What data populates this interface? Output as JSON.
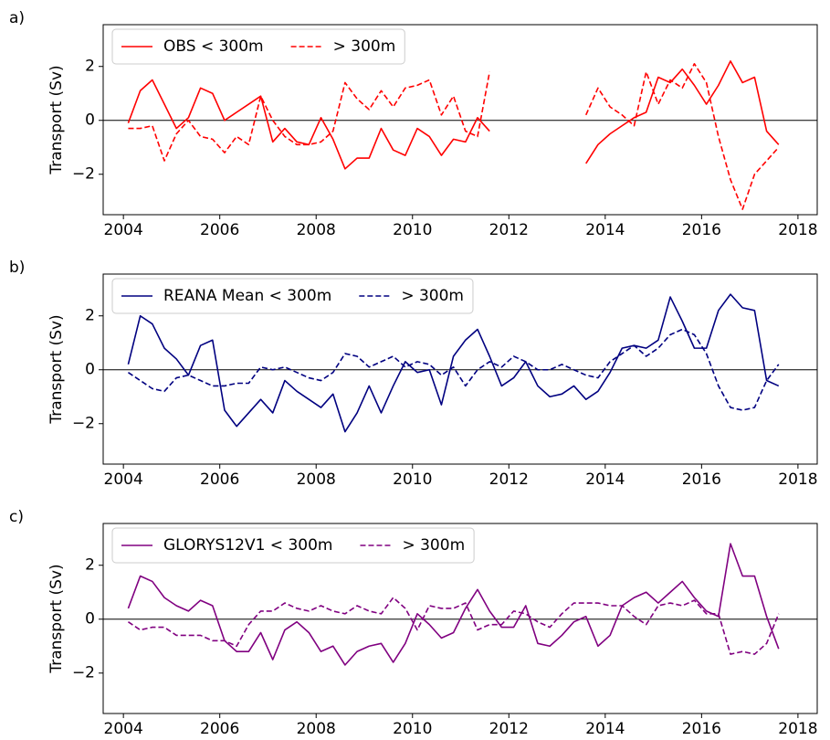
{
  "chart_data": [
    {
      "type": "line",
      "label": "a)",
      "ylabel": "Transport (Sv)",
      "legend": "upper left",
      "hline": 0,
      "xlim": [
        2003.58,
        2018.4
      ],
      "xticks": [
        2004,
        2006,
        2008,
        2010,
        2012,
        2014,
        2016,
        2018
      ],
      "ylim": [
        -3.5,
        3.55
      ],
      "yticks": [
        {
          "value": -2,
          "label": "−2"
        },
        0,
        2
      ],
      "x": [
        2004.1,
        2004.35,
        2004.6,
        2004.85,
        2005.1,
        2005.35,
        2005.6,
        2005.85,
        2006.1,
        2006.35,
        2006.6,
        2006.85,
        2007.1,
        2007.35,
        2007.6,
        2007.85,
        2008.1,
        2008.35,
        2008.6,
        2008.85,
        2009.1,
        2009.35,
        2009.6,
        2009.85,
        2010.1,
        2010.35,
        2010.6,
        2010.85,
        2011.1,
        2011.35,
        2011.6,
        2011.85,
        2012.1,
        2012.35,
        2012.6,
        2012.85,
        2013.1,
        2013.35,
        2013.6,
        2013.85,
        2014.1,
        2014.35,
        2014.6,
        2014.85,
        2015.1,
        2015.35,
        2015.6,
        2015.85,
        2016.1,
        2016.35,
        2016.6,
        2016.85,
        2017.1,
        2017.35,
        2017.6
      ],
      "series": [
        {
          "name": "OBS < 300m",
          "color": "#ff0000",
          "linestyle": "solid",
          "values": [
            -0.1,
            1.1,
            1.5,
            0.6,
            -0.3,
            0.1,
            1.2,
            1.0,
            0.0,
            0.3,
            0.6,
            0.9,
            -0.8,
            -0.3,
            -0.8,
            -0.9,
            0.1,
            -0.7,
            -1.8,
            -1.4,
            -1.4,
            -0.3,
            -1.1,
            -1.3,
            -0.3,
            -0.6,
            -1.3,
            -0.7,
            -0.8,
            0.1,
            -0.4,
            null,
            null,
            null,
            null,
            null,
            null,
            null,
            -1.6,
            -0.9,
            -0.5,
            -0.2,
            0.1,
            0.3,
            1.6,
            1.4,
            1.9,
            1.3,
            0.6,
            1.3,
            2.2,
            1.4,
            1.6,
            -0.4,
            -0.9
          ]
        },
        {
          "name": "> 300m",
          "color": "#ff0000",
          "linestyle": "dashed",
          "values": [
            -0.3,
            -0.3,
            -0.2,
            -1.5,
            -0.5,
            0.0,
            -0.6,
            -0.7,
            -1.2,
            -0.6,
            -0.9,
            0.9,
            0.0,
            -0.6,
            -0.9,
            -0.9,
            -0.8,
            -0.4,
            1.4,
            0.8,
            0.4,
            1.1,
            0.5,
            1.2,
            1.3,
            1.5,
            0.2,
            0.9,
            -0.4,
            -0.6,
            1.8,
            null,
            null,
            null,
            null,
            null,
            null,
            null,
            0.2,
            1.2,
            0.5,
            0.2,
            -0.2,
            1.8,
            0.6,
            1.5,
            1.2,
            2.1,
            1.4,
            -0.6,
            -2.2,
            -3.3,
            -2.0,
            -1.5,
            -1.0
          ]
        }
      ]
    },
    {
      "type": "line",
      "label": "b)",
      "ylabel": "Transport (Sv)",
      "legend": "upper left",
      "hline": 0,
      "xlim": [
        2003.58,
        2018.4
      ],
      "xticks": [
        2004,
        2006,
        2008,
        2010,
        2012,
        2014,
        2016,
        2018
      ],
      "ylim": [
        -3.5,
        3.55
      ],
      "yticks": [
        {
          "value": -2,
          "label": "−2"
        },
        0,
        2
      ],
      "x": [
        2004.1,
        2004.35,
        2004.6,
        2004.85,
        2005.1,
        2005.35,
        2005.6,
        2005.85,
        2006.1,
        2006.35,
        2006.6,
        2006.85,
        2007.1,
        2007.35,
        2007.6,
        2007.85,
        2008.1,
        2008.35,
        2008.6,
        2008.85,
        2009.1,
        2009.35,
        2009.6,
        2009.85,
        2010.1,
        2010.35,
        2010.6,
        2010.85,
        2011.1,
        2011.35,
        2011.6,
        2011.85,
        2012.1,
        2012.35,
        2012.6,
        2012.85,
        2013.1,
        2013.35,
        2013.6,
        2013.85,
        2014.1,
        2014.35,
        2014.6,
        2014.85,
        2015.1,
        2015.35,
        2015.6,
        2015.85,
        2016.1,
        2016.35,
        2016.6,
        2016.85,
        2017.1,
        2017.35,
        2017.6
      ],
      "series": [
        {
          "name": "REANA Mean < 300m",
          "color": "#000080",
          "linestyle": "solid",
          "values": [
            0.2,
            2.0,
            1.7,
            0.8,
            0.4,
            -0.2,
            0.9,
            1.1,
            -1.5,
            -2.1,
            -1.6,
            -1.1,
            -1.6,
            -0.4,
            -0.8,
            -1.1,
            -1.4,
            -0.9,
            -2.3,
            -1.6,
            -0.6,
            -1.6,
            -0.6,
            0.3,
            -0.1,
            0.0,
            -1.3,
            0.5,
            1.1,
            1.5,
            0.5,
            -0.6,
            -0.3,
            0.3,
            -0.6,
            -1.0,
            -0.9,
            -0.6,
            -1.1,
            -0.8,
            -0.1,
            0.8,
            0.9,
            0.8,
            1.1,
            2.7,
            1.8,
            0.8,
            0.8,
            2.2,
            2.8,
            2.3,
            2.2,
            -0.4,
            -0.6
          ]
        },
        {
          "name": "> 300m",
          "color": "#000080",
          "linestyle": "dashed",
          "values": [
            -0.1,
            -0.4,
            -0.7,
            -0.8,
            -0.3,
            -0.2,
            -0.4,
            -0.6,
            -0.6,
            -0.5,
            -0.5,
            0.1,
            0.0,
            0.1,
            -0.1,
            -0.3,
            -0.4,
            -0.1,
            0.6,
            0.5,
            0.1,
            0.3,
            0.5,
            0.1,
            0.3,
            0.2,
            -0.2,
            0.1,
            -0.6,
            0.0,
            0.3,
            0.1,
            0.5,
            0.3,
            0.0,
            0.0,
            0.2,
            0.0,
            -0.2,
            -0.3,
            0.3,
            0.6,
            0.9,
            0.5,
            0.8,
            1.3,
            1.5,
            1.3,
            0.6,
            -0.6,
            -1.4,
            -1.5,
            -1.4,
            -0.4,
            0.2
          ]
        }
      ]
    },
    {
      "type": "line",
      "label": "c)",
      "ylabel": "Transport (Sv)",
      "legend": "upper left",
      "hline": 0,
      "xlim": [
        2003.58,
        2018.4
      ],
      "xticks": [
        2004,
        2006,
        2008,
        2010,
        2012,
        2014,
        2016,
        2018
      ],
      "ylim": [
        -3.5,
        3.55
      ],
      "yticks": [
        {
          "value": -2,
          "label": "−2"
        },
        0,
        2
      ],
      "x": [
        2004.1,
        2004.35,
        2004.6,
        2004.85,
        2005.1,
        2005.35,
        2005.6,
        2005.85,
        2006.1,
        2006.35,
        2006.6,
        2006.85,
        2007.1,
        2007.35,
        2007.6,
        2007.85,
        2008.1,
        2008.35,
        2008.6,
        2008.85,
        2009.1,
        2009.35,
        2009.6,
        2009.85,
        2010.1,
        2010.35,
        2010.6,
        2010.85,
        2011.1,
        2011.35,
        2011.6,
        2011.85,
        2012.1,
        2012.35,
        2012.6,
        2012.85,
        2013.1,
        2013.35,
        2013.6,
        2013.85,
        2014.1,
        2014.35,
        2014.6,
        2014.85,
        2015.1,
        2015.35,
        2015.6,
        2015.85,
        2016.1,
        2016.35,
        2016.6,
        2016.85,
        2017.1,
        2017.35,
        2017.6
      ],
      "series": [
        {
          "name": "GLORYS12V1 < 300m",
          "color": "#800080",
          "linestyle": "solid",
          "values": [
            0.4,
            1.6,
            1.4,
            0.8,
            0.5,
            0.3,
            0.7,
            0.5,
            -0.8,
            -1.2,
            -1.2,
            -0.5,
            -1.5,
            -0.4,
            -0.1,
            -0.5,
            -1.2,
            -1.0,
            -1.7,
            -1.2,
            -1.0,
            -0.9,
            -1.6,
            -0.9,
            0.2,
            -0.2,
            -0.7,
            -0.5,
            0.4,
            1.1,
            0.3,
            -0.3,
            -0.3,
            0.5,
            -0.9,
            -1.0,
            -0.6,
            -0.1,
            0.1,
            -1.0,
            -0.6,
            0.5,
            0.8,
            1.0,
            0.6,
            1.0,
            1.4,
            0.8,
            0.3,
            0.1,
            2.8,
            1.6,
            1.6,
            0.1,
            -1.1
          ]
        },
        {
          "name": "> 300m",
          "color": "#800080",
          "linestyle": "dashed",
          "values": [
            -0.1,
            -0.4,
            -0.3,
            -0.3,
            -0.6,
            -0.6,
            -0.6,
            -0.8,
            -0.8,
            -1.0,
            -0.2,
            0.3,
            0.3,
            0.6,
            0.4,
            0.3,
            0.5,
            0.3,
            0.2,
            0.5,
            0.3,
            0.2,
            0.8,
            0.4,
            -0.4,
            0.5,
            0.4,
            0.4,
            0.6,
            -0.4,
            -0.2,
            -0.2,
            0.3,
            0.2,
            -0.1,
            -0.3,
            0.2,
            0.6,
            0.6,
            0.6,
            0.5,
            0.5,
            0.1,
            -0.2,
            0.5,
            0.6,
            0.5,
            0.7,
            0.2,
            0.2,
            -1.3,
            -1.2,
            -1.3,
            -0.9,
            0.2
          ]
        }
      ]
    }
  ]
}
